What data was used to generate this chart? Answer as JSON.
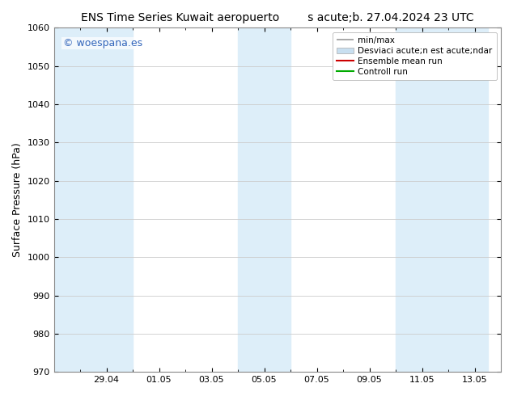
{
  "title_left": "ENS Time Series Kuwait aeropuerto",
  "title_right": "s acute;b. 27.04.2024 23 UTC",
  "ylabel": "Surface Pressure (hPa)",
  "ylim": [
    970,
    1060
  ],
  "yticks": [
    970,
    980,
    990,
    1000,
    1010,
    1020,
    1030,
    1040,
    1050,
    1060
  ],
  "xtick_labels": [
    "29.04",
    "01.05",
    "03.05",
    "05.05",
    "07.05",
    "09.05",
    "11.05",
    "13.05"
  ],
  "xtick_positions": [
    2,
    4,
    6,
    8,
    10,
    12,
    14,
    16
  ],
  "xlim": [
    0,
    17
  ],
  "shaded_bands": [
    {
      "x_start": 0.0,
      "x_end": 3.0,
      "color": "#ddeef9"
    },
    {
      "x_start": 7.0,
      "x_end": 9.0,
      "color": "#ddeef9"
    },
    {
      "x_start": 13.0,
      "x_end": 16.5,
      "color": "#ddeef9"
    }
  ],
  "watermark": "© woespana.es",
  "watermark_color": "#3366bb",
  "bg_color": "#ffffff",
  "plot_bg_color": "#ffffff",
  "grid_color": "#cccccc",
  "tick_fontsize": 8,
  "label_fontsize": 9,
  "title_fontsize": 10,
  "legend_fontsize": 7.5
}
